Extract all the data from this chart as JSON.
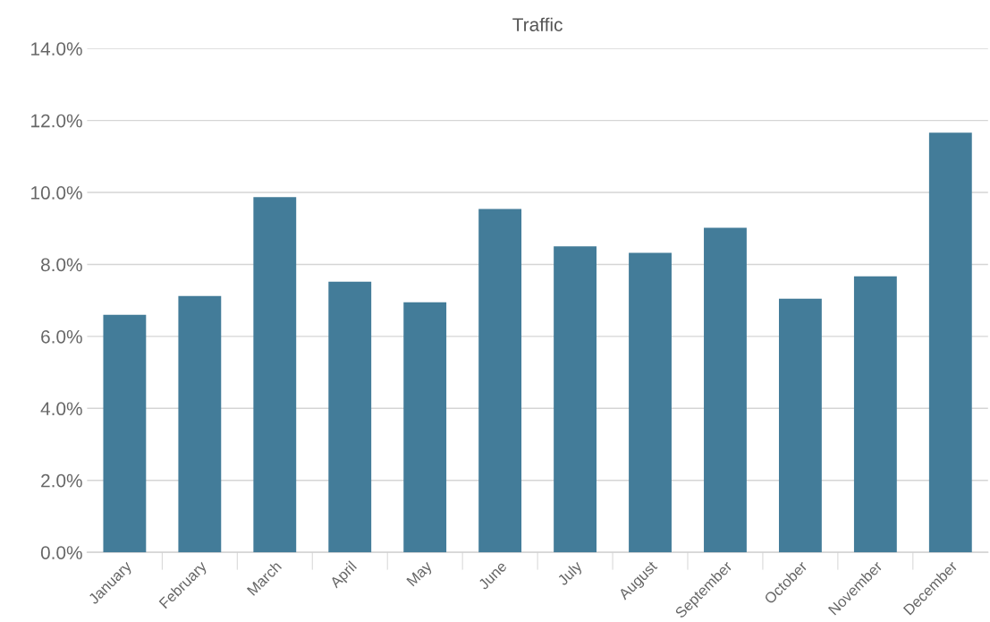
{
  "chart_data": {
    "type": "bar",
    "title": "Traffic",
    "categories": [
      "January",
      "February",
      "March",
      "April",
      "May",
      "June",
      "July",
      "August",
      "September",
      "October",
      "November",
      "December"
    ],
    "values": [
      6.6,
      7.12,
      9.87,
      7.52,
      6.95,
      9.54,
      8.5,
      8.32,
      9.02,
      7.05,
      7.67,
      11.66
    ],
    "color": "#437c99",
    "ylim": [
      0,
      14
    ],
    "yticks": [
      {
        "value": 0,
        "label": "0.0%"
      },
      {
        "value": 2,
        "label": "2.0%"
      },
      {
        "value": 4,
        "label": "4.0%"
      },
      {
        "value": 6,
        "label": "6.0%"
      },
      {
        "value": 8,
        "label": "8.0%"
      },
      {
        "value": 10,
        "label": "10.0%"
      },
      {
        "value": 12,
        "label": "12.0%"
      },
      {
        "value": 14,
        "label": "14.0%"
      }
    ],
    "grid": "y"
  }
}
